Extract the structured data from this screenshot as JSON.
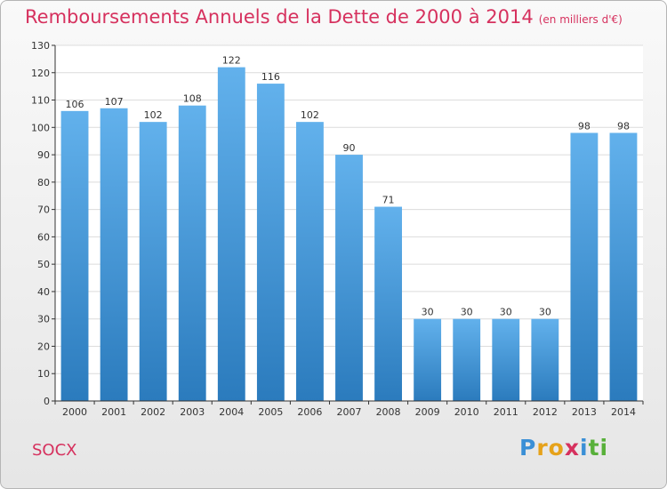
{
  "header": {
    "title": "Remboursements Annuels de la Dette de 2000 à 2014",
    "unit": "(en milliers d'€)"
  },
  "footer": {
    "commune": "SOCX",
    "logo": [
      "P",
      "r",
      "o",
      "x",
      "i",
      "t",
      "i"
    ]
  },
  "colors": {
    "title": "#d6315e",
    "bar_top": "#62b1ec",
    "bar_bottom": "#2b7bbd"
  },
  "chart_data": {
    "type": "bar",
    "title": "Remboursements Annuels de la Dette de 2000 à 2014",
    "subtitle": "(en milliers d'€)",
    "xlabel": "",
    "ylabel": "",
    "categories": [
      "2000",
      "2001",
      "2002",
      "2003",
      "2004",
      "2005",
      "2006",
      "2007",
      "2008",
      "2009",
      "2010",
      "2011",
      "2012",
      "2013",
      "2014"
    ],
    "values": [
      106,
      107,
      102,
      108,
      122,
      116,
      102,
      90,
      71,
      30,
      30,
      30,
      30,
      98,
      98
    ],
    "ylim": [
      0,
      130
    ],
    "yticks": [
      0,
      10,
      20,
      30,
      40,
      50,
      60,
      70,
      80,
      90,
      100,
      110,
      120,
      130
    ],
    "grid": true,
    "legend": "none"
  }
}
